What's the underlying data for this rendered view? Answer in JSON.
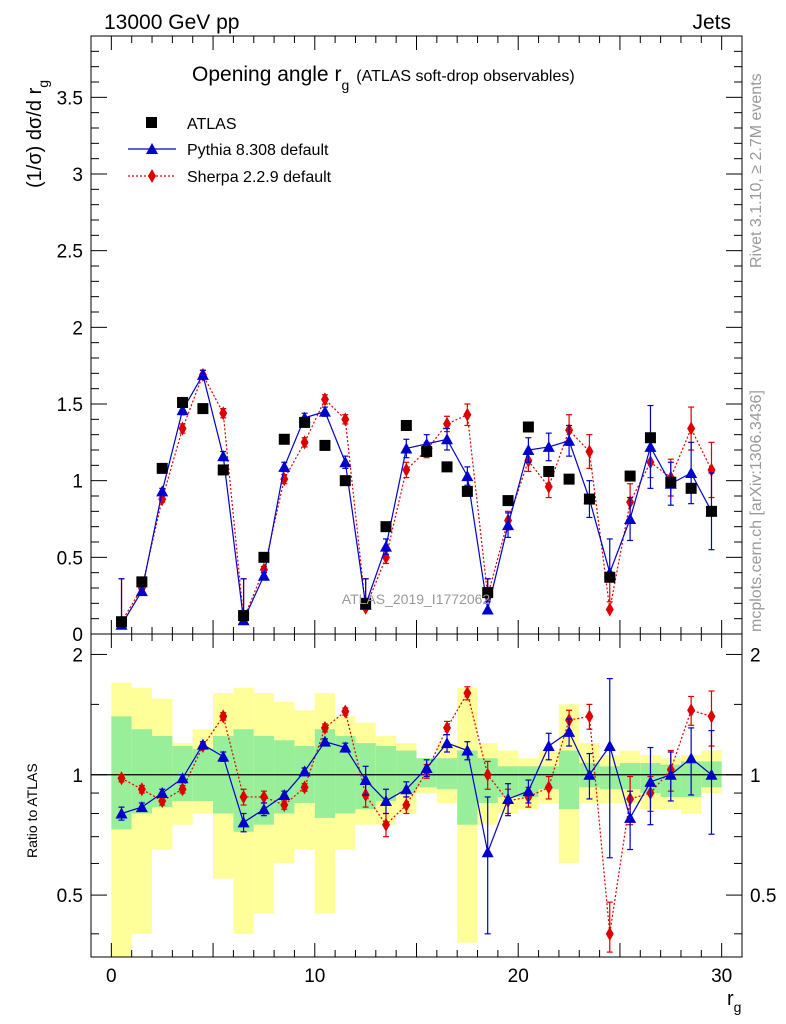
{
  "header": {
    "left": "13000 GeV pp",
    "right": "Jets"
  },
  "side_labels": {
    "rivet": "Rivet 3.1.10, ≥ 2.7M events",
    "mcplots": "mcplots.cern.ch [arXiv:1306.3436]"
  },
  "colors": {
    "data": "#000000",
    "pythia": "#0000cc",
    "sherpa": "#dd0000",
    "band_green": "#99ee99",
    "band_yellow": "#ffff99"
  },
  "chart_data": [
    {
      "type": "scatter",
      "title": "Opening angle r",
      "title_sub": "g",
      "title_note": "(ATLAS soft-drop observables)",
      "ylabel": "(1/σ) dσ/d r",
      "ylabel_sub": "g",
      "xlabel": "r",
      "xlabel_sub": "g",
      "watermark": "ATLAS_2019_I1772062",
      "xlim": [
        -1,
        31
      ],
      "ylim": [
        0,
        3.9
      ],
      "yticks": [
        0,
        0.5,
        1,
        1.5,
        2,
        2.5,
        3,
        3.5
      ],
      "ytick_labels": [
        "0",
        "0.5",
        "1",
        "1.5",
        "2",
        "2.5",
        "3",
        "3.5"
      ],
      "legend_position": "top-left",
      "legend": [
        {
          "label": "ATLAS",
          "marker": "square"
        },
        {
          "label": "Pythia 8.308 default",
          "marker": "triangle"
        },
        {
          "label": "Sherpa 2.2.9 default",
          "marker": "diamond"
        }
      ],
      "x": [
        0.5,
        1.5,
        2.5,
        3.5,
        4.5,
        5.5,
        6.5,
        7.5,
        8.5,
        9.5,
        10.5,
        11.5,
        12.5,
        13.5,
        14.5,
        15.5,
        16.5,
        17.5,
        18.5,
        19.5,
        20.5,
        21.5,
        22.5,
        23.5,
        24.5,
        25.5,
        26.5,
        27.5,
        28.5,
        29.5
      ],
      "series": [
        {
          "name": "ATLAS",
          "values": [
            0.08,
            0.34,
            1.08,
            1.51,
            1.47,
            1.07,
            0.12,
            0.5,
            1.27,
            1.38,
            1.23,
            1.0,
            0.2,
            0.7,
            1.36,
            1.19,
            1.09,
            0.93,
            0.27,
            0.87,
            1.35,
            1.06,
            1.01,
            0.88,
            0.37,
            1.03,
            1.28,
            0.99,
            0.95,
            0.8
          ]
        },
        {
          "name": "Pythia 8.308 default",
          "values": [
            0.06,
            0.28,
            0.93,
            1.46,
            1.69,
            1.16,
            0.09,
            0.38,
            1.09,
            1.41,
            1.45,
            1.12,
            0.19,
            0.57,
            1.21,
            1.24,
            1.27,
            1.03,
            0.16,
            0.71,
            1.2,
            1.22,
            1.26,
            0.88,
            0.4,
            0.75,
            1.22,
            0.98,
            1.05,
            0.8
          ],
          "errors": [
            0.01,
            0.01,
            0.02,
            0.03,
            0.03,
            0.03,
            0.01,
            0.02,
            0.03,
            0.03,
            0.03,
            0.04,
            0.02,
            0.05,
            0.06,
            0.06,
            0.07,
            0.06,
            0.05,
            0.08,
            0.08,
            0.09,
            0.1,
            0.12,
            0.22,
            0.14,
            0.27,
            0.14,
            0.2,
            0.25
          ]
        },
        {
          "name": "Sherpa 2.2.9 default",
          "values": [
            0.08,
            0.3,
            0.88,
            1.34,
            1.69,
            1.44,
            0.1,
            0.42,
            1.01,
            1.25,
            1.53,
            1.4,
            0.17,
            0.5,
            1.07,
            1.2,
            1.37,
            1.43,
            0.25,
            0.74,
            1.13,
            0.96,
            1.33,
            1.19,
            0.16,
            0.86,
            1.12,
            1.02,
            1.34,
            1.07
          ],
          "errors": [
            0.01,
            0.01,
            0.02,
            0.03,
            0.03,
            0.03,
            0.01,
            0.02,
            0.03,
            0.03,
            0.03,
            0.03,
            0.02,
            0.04,
            0.05,
            0.05,
            0.05,
            0.07,
            0.04,
            0.06,
            0.07,
            0.07,
            0.1,
            0.11,
            0.05,
            0.12,
            0.1,
            0.12,
            0.14,
            0.18
          ]
        }
      ]
    },
    {
      "type": "scatter",
      "ylabel": "Ratio to ATLAS",
      "xlim": [
        -1,
        31
      ],
      "ylim": [
        0.35,
        2.25
      ],
      "reference_line": 1,
      "xticks": [
        0,
        10,
        20,
        30
      ],
      "xtick_labels": [
        "0",
        "10",
        "20",
        "30"
      ],
      "yticks": [
        0.5,
        1,
        2
      ],
      "ytick_labels": [
        "0.5",
        "1",
        "2"
      ],
      "x": [
        0.5,
        1.5,
        2.5,
        3.5,
        4.5,
        5.5,
        6.5,
        7.5,
        8.5,
        9.5,
        10.5,
        11.5,
        12.5,
        13.5,
        14.5,
        15.5,
        16.5,
        17.5,
        18.5,
        19.5,
        20.5,
        21.5,
        22.5,
        23.5,
        24.5,
        25.5,
        26.5,
        27.5,
        28.5,
        29.5
      ],
      "band_inner": [
        [
          0.73,
          1.4
        ],
        [
          0.8,
          1.3
        ],
        [
          0.83,
          1.25
        ],
        [
          0.86,
          1.18
        ],
        [
          0.86,
          1.16
        ],
        [
          0.8,
          1.25
        ],
        [
          0.72,
          1.3
        ],
        [
          0.75,
          1.25
        ],
        [
          0.8,
          1.22
        ],
        [
          0.85,
          1.18
        ],
        [
          0.78,
          1.3
        ],
        [
          0.8,
          1.25
        ],
        [
          0.82,
          1.2
        ],
        [
          0.86,
          1.18
        ],
        [
          0.9,
          1.15
        ],
        [
          0.93,
          1.1
        ],
        [
          0.92,
          1.1
        ],
        [
          0.75,
          1.15
        ],
        [
          0.85,
          1.1
        ],
        [
          0.88,
          1.05
        ],
        [
          0.88,
          1.05
        ],
        [
          0.92,
          1.05
        ],
        [
          0.82,
          1.15
        ],
        [
          0.93,
          1.07
        ],
        [
          0.92,
          1.05
        ],
        [
          0.92,
          1.07
        ],
        [
          0.9,
          1.07
        ],
        [
          0.88,
          1.06
        ],
        [
          0.88,
          1.08
        ],
        [
          0.93,
          1.08
        ]
      ],
      "band_outer": [
        [
          0.35,
          1.7
        ],
        [
          0.4,
          1.65
        ],
        [
          0.65,
          1.55
        ],
        [
          0.75,
          1.2
        ],
        [
          0.8,
          1.3
        ],
        [
          0.55,
          1.6
        ],
        [
          0.4,
          1.65
        ],
        [
          0.45,
          1.6
        ],
        [
          0.6,
          1.52
        ],
        [
          0.65,
          1.45
        ],
        [
          0.45,
          1.6
        ],
        [
          0.65,
          1.4
        ],
        [
          0.75,
          1.35
        ],
        [
          0.75,
          1.25
        ],
        [
          0.8,
          1.2
        ],
        [
          0.9,
          1.1
        ],
        [
          0.85,
          1.2
        ],
        [
          0.38,
          1.65
        ],
        [
          0.75,
          1.2
        ],
        [
          0.8,
          1.15
        ],
        [
          0.82,
          1.1
        ],
        [
          0.85,
          1.15
        ],
        [
          0.6,
          1.5
        ],
        [
          0.85,
          1.2
        ],
        [
          0.85,
          1.12
        ],
        [
          0.85,
          1.15
        ],
        [
          0.82,
          1.12
        ],
        [
          0.82,
          1.1
        ],
        [
          0.8,
          1.12
        ],
        [
          0.9,
          1.15
        ]
      ],
      "series": [
        {
          "name": "Pythia 8.308 default",
          "values": [
            0.8,
            0.83,
            0.9,
            0.98,
            1.19,
            1.11,
            0.76,
            0.82,
            0.89,
            1.02,
            1.21,
            1.17,
            0.97,
            0.86,
            0.92,
            1.04,
            1.2,
            1.15,
            0.64,
            0.87,
            0.91,
            1.18,
            1.28,
            1.0,
            1.18,
            0.78,
            0.96,
            1.0,
            1.1,
            1.0
          ],
          "errors": [
            0.03,
            0.02,
            0.02,
            0.02,
            0.02,
            0.03,
            0.04,
            0.03,
            0.02,
            0.02,
            0.02,
            0.03,
            0.08,
            0.06,
            0.04,
            0.05,
            0.06,
            0.06,
            0.24,
            0.08,
            0.06,
            0.09,
            0.1,
            0.13,
            0.56,
            0.13,
            0.21,
            0.14,
            0.21,
            0.29
          ]
        },
        {
          "name": "Sherpa 2.2.9 default",
          "values": [
            0.98,
            0.92,
            0.86,
            0.92,
            1.18,
            1.4,
            0.88,
            0.88,
            0.84,
            0.93,
            1.31,
            1.44,
            0.89,
            0.75,
            0.84,
            1.02,
            1.31,
            1.6,
            1.0,
            0.86,
            0.88,
            0.93,
            1.37,
            1.4,
            0.4,
            0.87,
            0.9,
            1.03,
            1.45,
            1.4
          ],
          "errors": [
            0.02,
            0.02,
            0.02,
            0.02,
            0.02,
            0.03,
            0.04,
            0.03,
            0.02,
            0.02,
            0.03,
            0.03,
            0.06,
            0.05,
            0.04,
            0.04,
            0.05,
            0.06,
            0.08,
            0.06,
            0.05,
            0.06,
            0.08,
            0.1,
            0.08,
            0.12,
            0.09,
            0.12,
            0.12,
            0.22
          ]
        }
      ]
    }
  ]
}
